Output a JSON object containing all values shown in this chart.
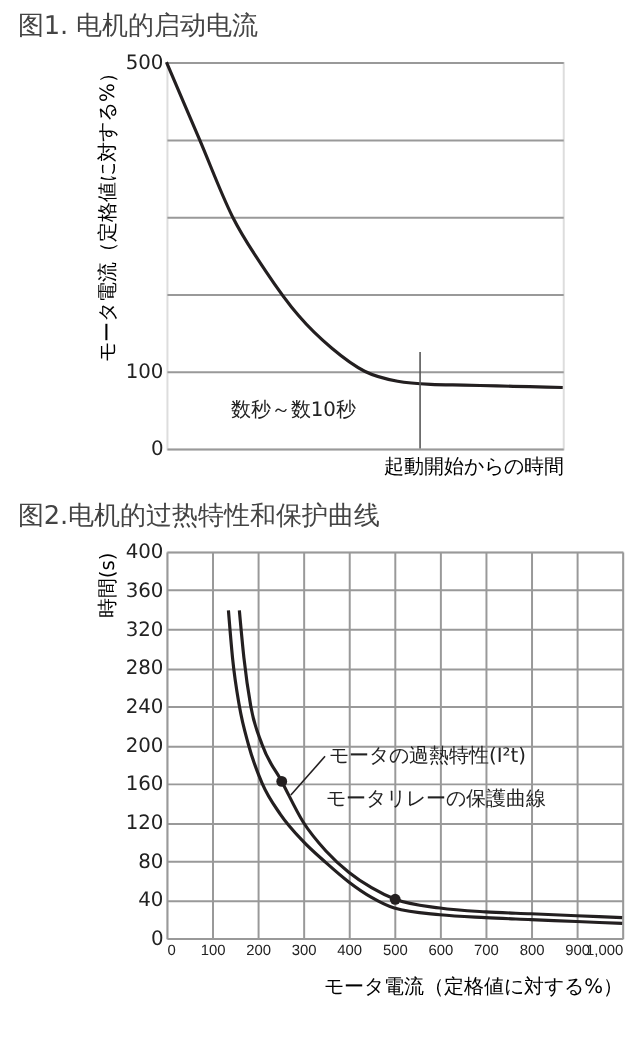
{
  "chart_data": [
    {
      "type": "line",
      "title": "图1. 电机的启动电流",
      "ylabel": "モータ電流（定格値に対する%）",
      "xlabel": "起動開始からの時間",
      "categories": [
        null,
        null,
        null,
        null,
        null,
        null,
        null,
        null,
        null,
        null,
        null,
        null,
        null
      ],
      "series": [
        {
          "color": "#231f20",
          "values": [
            500,
            400,
            300,
            230,
            172,
            130,
            100,
            87,
            83,
            82,
            81,
            80,
            79
          ]
        }
      ],
      "ylim": [
        0,
        500
      ],
      "yticks": [
        0,
        100,
        {
          "value": 200,
          "label": null
        },
        {
          "value": 300,
          "label": null
        },
        {
          "value": 400,
          "label": null
        },
        500
      ],
      "grid": "y",
      "tick_labels": "y",
      "marker": "none",
      "line_style": "solid",
      "annotations": [
        "数秒～数10秒"
      ]
    },
    {
      "type": "line",
      "title": "图2.电机的过热特性和保护曲线",
      "ylabel": "時間(s)",
      "xlabel": "モータ電流（定格値に対する%）",
      "series": [
        {
          "color": "#231f20",
          "x": [
            160,
            170,
            185,
            210,
            253,
            300,
            350,
            400,
            450,
            502,
            600,
            700,
            800,
            900,
            1000
          ],
          "values": [
            339,
            290,
            240,
            200,
            162,
            120,
            90,
            68,
            52,
            40,
            31,
            27,
            25,
            23,
            21
          ]
        },
        {
          "color": "#231f20",
          "x": [
            136,
            145,
            160,
            180,
            210,
            250,
            300,
            350,
            400,
            450,
            500,
            600,
            700,
            800,
            900,
            1000
          ],
          "values": [
            339,
            290,
            240,
            200,
            160,
            128,
            100,
            78,
            58,
            42,
            31,
            24,
            21,
            19,
            17,
            15
          ]
        },
        {
          "type": "scatter",
          "marker": "circle",
          "color": "#231f20",
          "x": [
            253,
            502
          ],
          "values": [
            162,
            40
          ]
        }
      ],
      "xlim": [
        0,
        1000
      ],
      "xticks": [
        0,
        100,
        200,
        300,
        400,
        500,
        600,
        700,
        800,
        900,
        {
          "value": 1000,
          "label": "1,000"
        }
      ],
      "ylim": [
        0,
        400
      ],
      "yticks": [
        0,
        40,
        80,
        120,
        160,
        200,
        240,
        280,
        320,
        360,
        400
      ],
      "grid": true,
      "marker": "none",
      "line_style": "solid",
      "annotations": [
        {
          "text": "モータの過熱特性(I²t)",
          "x": 273,
          "y": 148
        },
        "モータリレーの保護曲線"
      ]
    }
  ]
}
